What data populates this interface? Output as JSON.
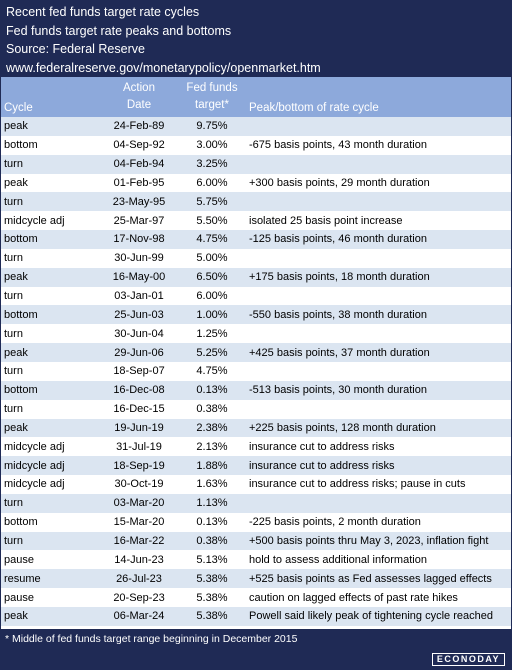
{
  "header": {
    "lines": [
      "Recent fed funds target rate cycles",
      "Fed funds target rate peaks and bottoms",
      "Source: Federal Reserve",
      "www.federalreserve.gov/monetarypolicy/openmarket.htm"
    ]
  },
  "table": {
    "columns": [
      [
        "Cycle"
      ],
      [
        "Action",
        "Date"
      ],
      [
        "Fed funds",
        "target*"
      ],
      [
        "Peak/bottom of rate cycle"
      ]
    ],
    "rows": [
      [
        "peak",
        "24-Feb-89",
        "9.75%",
        ""
      ],
      [
        "bottom",
        "04-Sep-92",
        "3.00%",
        "-675 basis points, 43 month duration"
      ],
      [
        "turn",
        "04-Feb-94",
        "3.25%",
        ""
      ],
      [
        "peak",
        "01-Feb-95",
        "6.00%",
        "+300 basis points, 29 month duration"
      ],
      [
        "turn",
        "23-May-95",
        "5.75%",
        ""
      ],
      [
        "midcycle adj",
        "25-Mar-97",
        "5.50%",
        "isolated 25 basis point increase"
      ],
      [
        "bottom",
        "17-Nov-98",
        "4.75%",
        "-125 basis points, 46 month duration"
      ],
      [
        "turn",
        "30-Jun-99",
        "5.00%",
        ""
      ],
      [
        "peak",
        "16-May-00",
        "6.50%",
        "+175 basis points, 18 month duration"
      ],
      [
        "turn",
        "03-Jan-01",
        "6.00%",
        ""
      ],
      [
        "bottom",
        "25-Jun-03",
        "1.00%",
        "-550 basis points, 38 month duration"
      ],
      [
        "turn",
        "30-Jun-04",
        "1.25%",
        ""
      ],
      [
        "peak",
        "29-Jun-06",
        "5.25%",
        "+425 basis points, 37 month duration"
      ],
      [
        "turn",
        "18-Sep-07",
        "4.75%",
        ""
      ],
      [
        "bottom",
        "16-Dec-08",
        "0.13%",
        "-513 basis points, 30 month duration"
      ],
      [
        "turn",
        "16-Dec-15",
        "0.38%",
        ""
      ],
      [
        "peak",
        "19-Jun-19",
        "2.38%",
        "+225 basis points, 128 month duration"
      ],
      [
        "midcycle adj",
        "31-Jul-19",
        "2.13%",
        "insurance cut to address risks"
      ],
      [
        "midcycle adj",
        "18-Sep-19",
        "1.88%",
        "insurance cut to address risks"
      ],
      [
        "midcycle adj",
        "30-Oct-19",
        "1.63%",
        "insurance cut to address risks; pause in cuts"
      ],
      [
        "turn",
        "03-Mar-20",
        "1.13%",
        ""
      ],
      [
        "bottom",
        "15-Mar-20",
        "0.13%",
        "-225 basis points, 2 month duration"
      ],
      [
        "turn",
        "16-Mar-22",
        "0.38%",
        "+500 basis points thru May 3, 2023, inflation fight"
      ],
      [
        "pause",
        "14-Jun-23",
        "5.13%",
        "hold to assess additional information"
      ],
      [
        "resume",
        "26-Jul-23",
        "5.38%",
        "+525 basis points as Fed assesses lagged effects"
      ],
      [
        "pause",
        "20-Sep-23",
        "5.38%",
        "caution on lagged effects of past rate hikes"
      ],
      [
        "peak",
        "06-Mar-24",
        "5.38%",
        "Powell said likely peak of tightening cycle reached"
      ]
    ]
  },
  "footer": {
    "note": "* Middle of fed funds target range beginning in December 2015",
    "logo": "ECONODAY"
  }
}
